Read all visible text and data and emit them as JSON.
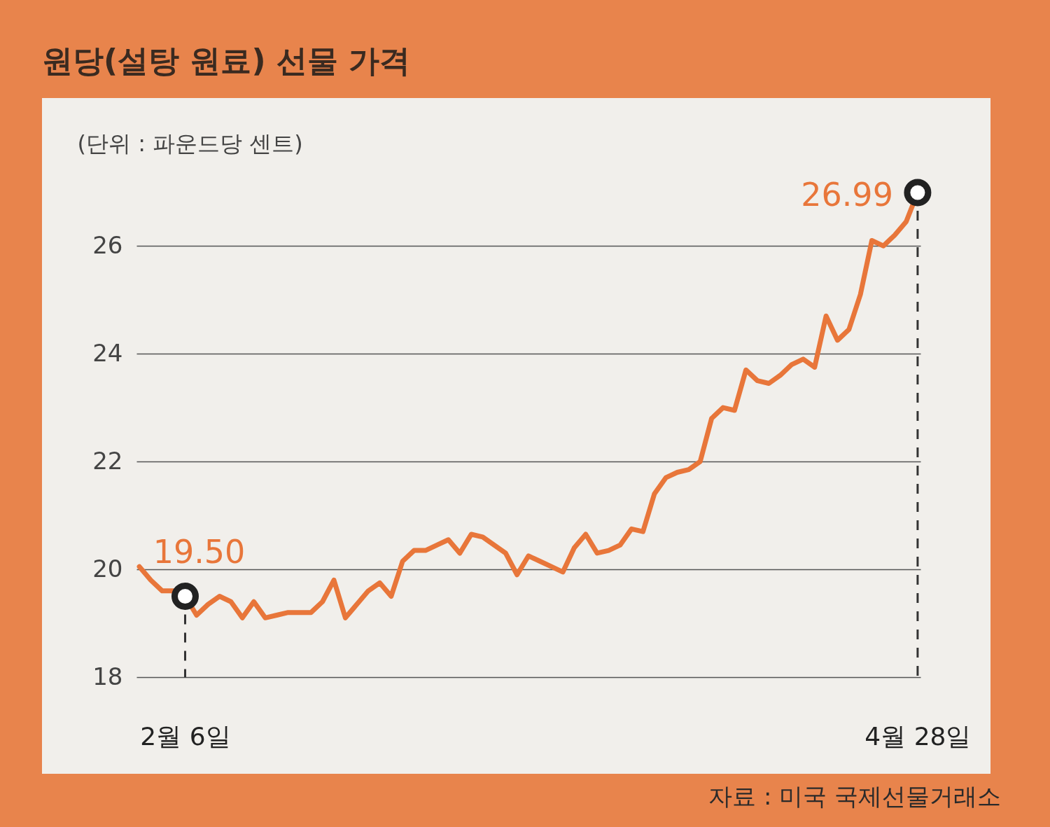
{
  "chart_data": {
    "type": "line",
    "title": "원당(설탕 원료) 선물 가격",
    "ylabel": "(단위 : 파운드당 센트)",
    "annotations": [
      "자료 : 미국 국제선물거래소"
    ],
    "categories": [
      null,
      null,
      null,
      null,
      "2월 6일",
      null,
      null,
      null,
      null,
      null,
      null,
      null,
      null,
      null,
      null,
      null,
      null,
      null,
      null,
      null,
      null,
      null,
      null,
      null,
      null,
      null,
      null,
      null,
      null,
      null,
      null,
      null,
      null,
      null,
      null,
      null,
      null,
      null,
      null,
      null,
      null,
      null,
      null,
      null,
      null,
      null,
      null,
      null,
      null,
      null,
      null,
      null,
      null,
      null,
      null,
      null,
      null,
      null,
      null,
      null,
      null,
      null,
      null,
      null,
      null,
      null,
      null,
      null,
      "4월 28일"
    ],
    "series": [
      {
        "color": "#e8763a",
        "values": [
          20.05,
          19.8,
          19.6,
          19.6,
          19.5,
          19.15,
          19.35,
          19.5,
          19.4,
          19.1,
          19.4,
          19.1,
          19.15,
          19.2,
          19.2,
          19.2,
          19.4,
          19.8,
          19.1,
          19.35,
          19.6,
          19.75,
          19.5,
          20.15,
          20.35,
          20.35,
          20.45,
          20.55,
          20.3,
          20.65,
          20.6,
          20.45,
          20.3,
          19.9,
          20.25,
          20.15,
          20.05,
          19.95,
          20.4,
          20.65,
          20.3,
          20.35,
          20.45,
          20.75,
          20.7,
          21.4,
          21.7,
          21.8,
          21.85,
          22.0,
          22.8,
          23.0,
          22.95,
          23.7,
          23.5,
          23.45,
          23.6,
          23.8,
          23.9,
          23.75,
          24.7,
          24.25,
          24.45,
          25.1,
          26.1,
          26.0,
          26.2,
          26.45,
          26.99
        ],
        "value_labels": [
          null,
          null,
          null,
          null,
          "19.50",
          null,
          null,
          null,
          null,
          null,
          null,
          null,
          null,
          null,
          null,
          null,
          null,
          null,
          null,
          null,
          null,
          null,
          null,
          null,
          null,
          null,
          null,
          null,
          null,
          null,
          null,
          null,
          null,
          null,
          null,
          null,
          null,
          null,
          null,
          null,
          null,
          null,
          null,
          null,
          null,
          null,
          null,
          null,
          null,
          null,
          null,
          null,
          null,
          null,
          null,
          null,
          null,
          null,
          null,
          null,
          null,
          null,
          null,
          null,
          null,
          null,
          null,
          null,
          "26.99"
        ]
      }
    ],
    "ylim": [
      18,
      26.99
    ],
    "yticks": [
      18,
      20,
      22,
      24,
      26
    ],
    "grid": "y",
    "ref_lines": [
      {
        "axis": "x",
        "value": "2월 6일",
        "line_style": "dashed",
        "color": "#333333"
      },
      {
        "axis": "x",
        "value": "4월 28일",
        "line_style": "dashed",
        "color": "#333333"
      }
    ]
  }
}
